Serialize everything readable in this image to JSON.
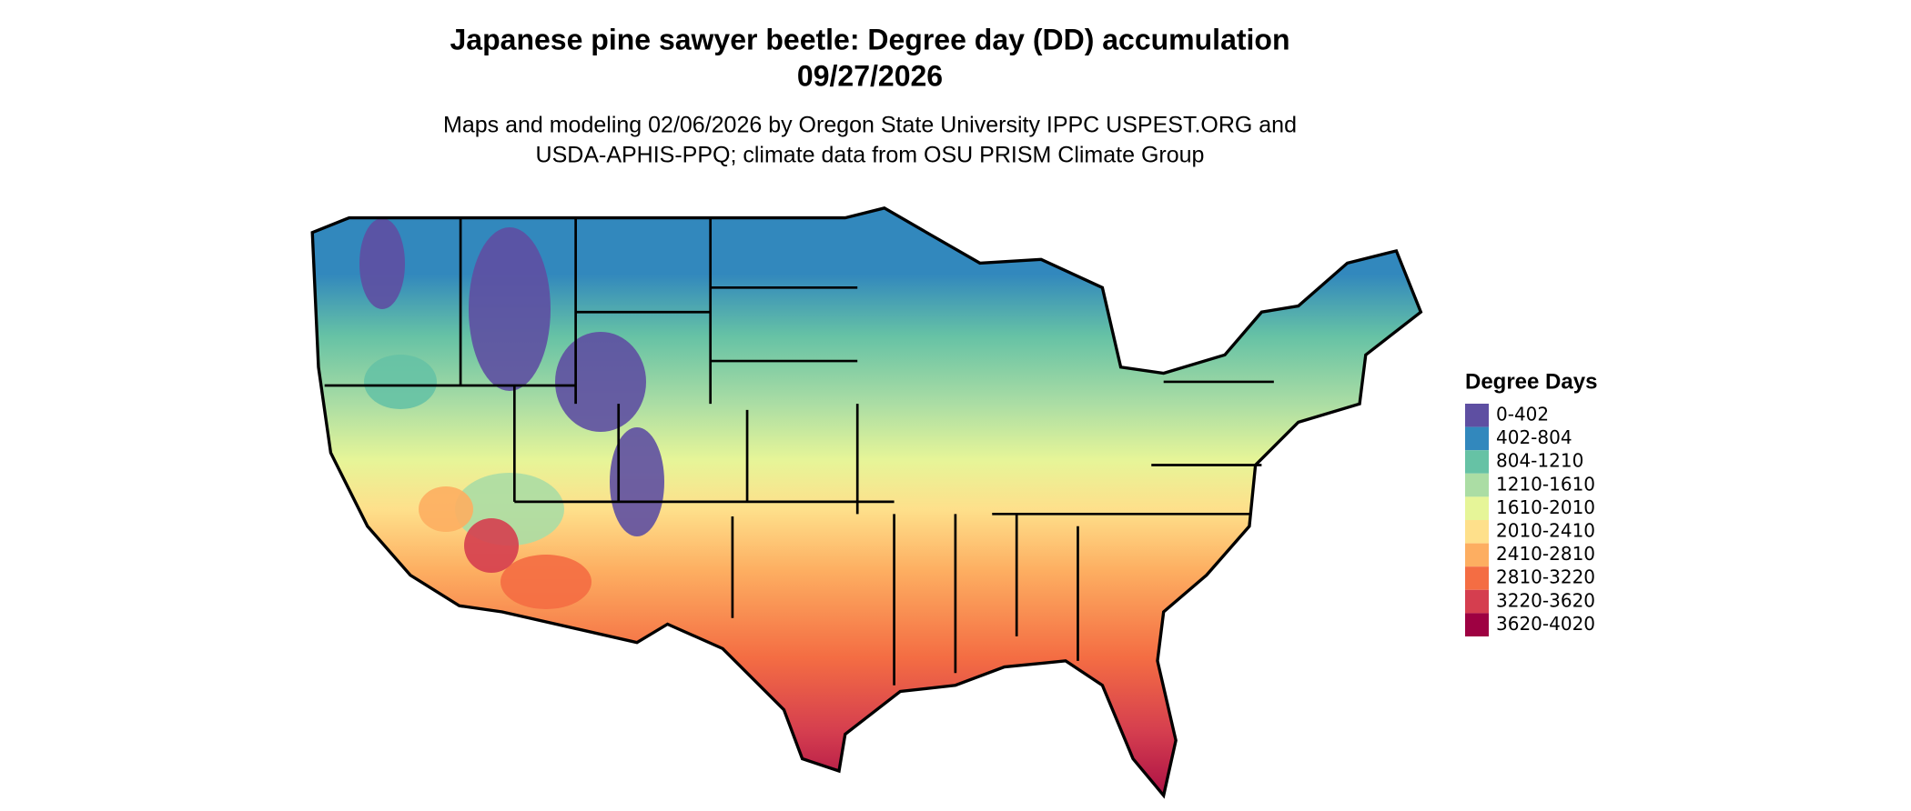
{
  "title": [
    "Japanese pine sawyer beetle: Degree day (DD) accumulation",
    "09/27/2026"
  ],
  "subtitle": [
    "Maps and modeling 02/06/2026 by Oregon State University IPPC USPEST.ORG and",
    "USDA-APHIS-PPQ; climate data from OSU PRISM Climate Group"
  ],
  "legend": {
    "title": "Degree Days",
    "items": [
      {
        "label": "0-402",
        "color": "#5e4fa2"
      },
      {
        "label": "402-804",
        "color": "#3288bd"
      },
      {
        "label": "804-1210",
        "color": "#66c2a5"
      },
      {
        "label": "1210-1610",
        "color": "#abdda4"
      },
      {
        "label": "1610-2010",
        "color": "#e6f598"
      },
      {
        "label": "2010-2410",
        "color": "#fee08b"
      },
      {
        "label": "2410-2810",
        "color": "#fdae61"
      },
      {
        "label": "2810-3220",
        "color": "#f46d43"
      },
      {
        "label": "3220-3620",
        "color": "#d53e4f"
      },
      {
        "label": "3620-4020",
        "color": "#9e0142"
      }
    ]
  }
}
